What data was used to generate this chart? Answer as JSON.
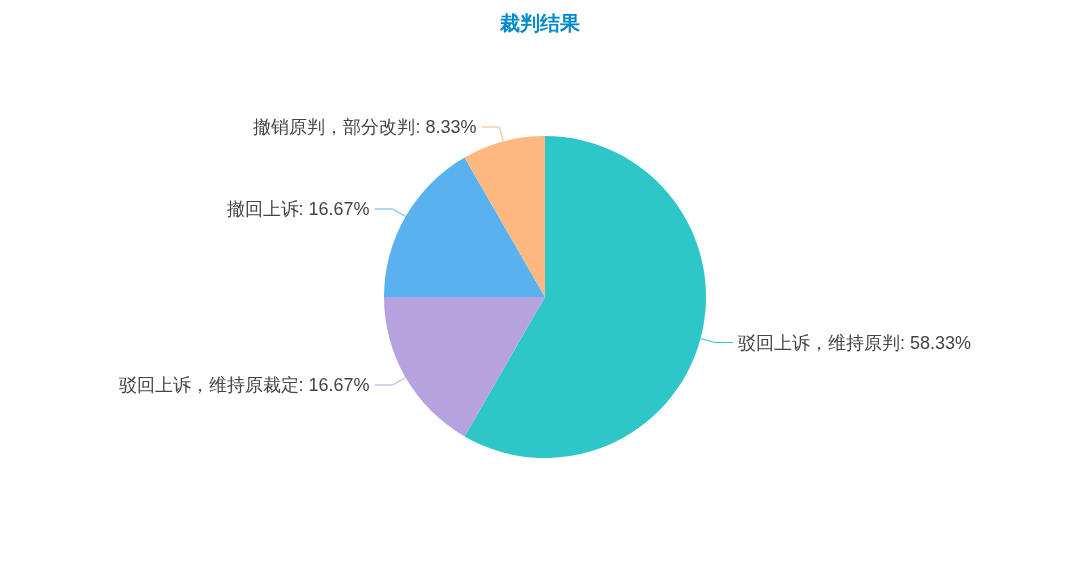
{
  "chart_data": {
    "type": "pie",
    "title": "裁判结果",
    "categories": [
      "驳回上诉，维持原判",
      "驳回上诉，维持原裁定",
      "撤回上诉",
      "撤销原判，部分改判"
    ],
    "values": [
      58.33,
      16.67,
      16.67,
      8.33
    ],
    "value_labels": [
      "58.33%",
      "16.67%",
      "16.67%",
      "8.33%"
    ],
    "colors": [
      "#2ec7c9",
      "#b6a2de",
      "#5ab1ef",
      "#ffb980"
    ],
    "legend": false
  }
}
